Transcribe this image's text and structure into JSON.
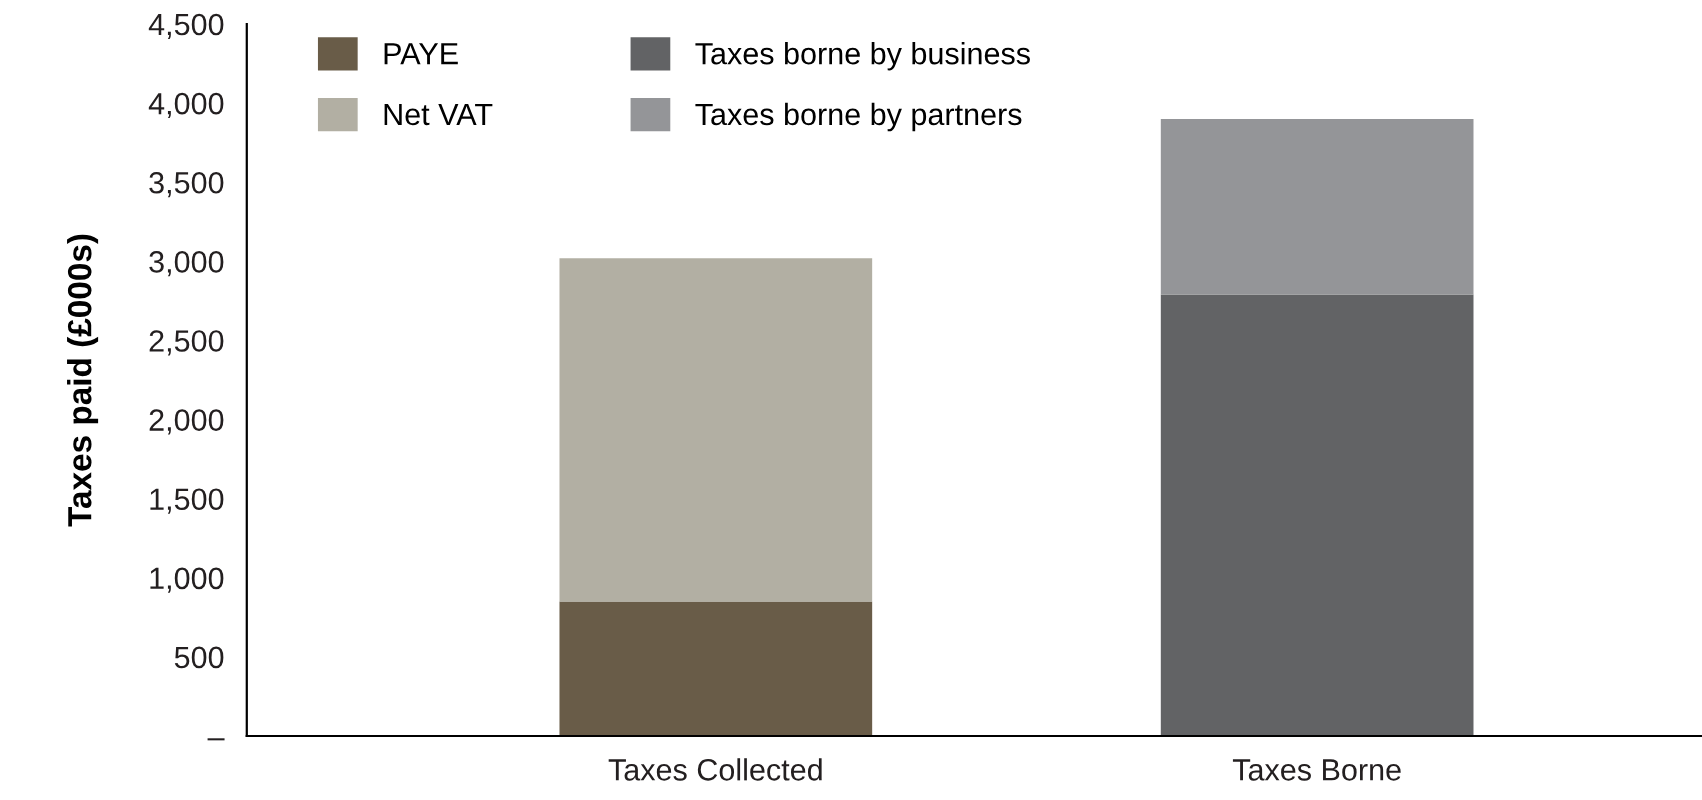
{
  "chart_data": {
    "type": "bar",
    "stacked": true,
    "ylabel": "Taxes paid (£000s)",
    "categories": [
      "Taxes Collected",
      "Taxes Borne"
    ],
    "series": [
      {
        "name": "PAYE",
        "color": "#695c48",
        "values": [
          850,
          null
        ]
      },
      {
        "name": "Net VAT",
        "color": "#b2afa3",
        "values": [
          2170,
          null
        ]
      },
      {
        "name": "Taxes borne by business",
        "color": "#626365",
        "values": [
          null,
          2790
        ]
      },
      {
        "name": "Taxes borne by partners",
        "color": "#949598",
        "values": [
          null,
          1110
        ]
      }
    ],
    "ylim": [
      0,
      4500
    ],
    "yticks": [
      {
        "value": 0,
        "label": "–"
      },
      500,
      {
        "value": 1000,
        "label": "1,000"
      },
      {
        "value": 1500,
        "label": "1,500"
      },
      {
        "value": 2000,
        "label": "2,000"
      },
      {
        "value": 2500,
        "label": "2,500"
      },
      {
        "value": 3000,
        "label": "3,000"
      },
      {
        "value": 3500,
        "label": "3,500"
      },
      {
        "value": 4000,
        "label": "4,000"
      },
      {
        "value": 4500,
        "label": "4,500"
      }
    ],
    "legend": "top left",
    "grid": false
  }
}
